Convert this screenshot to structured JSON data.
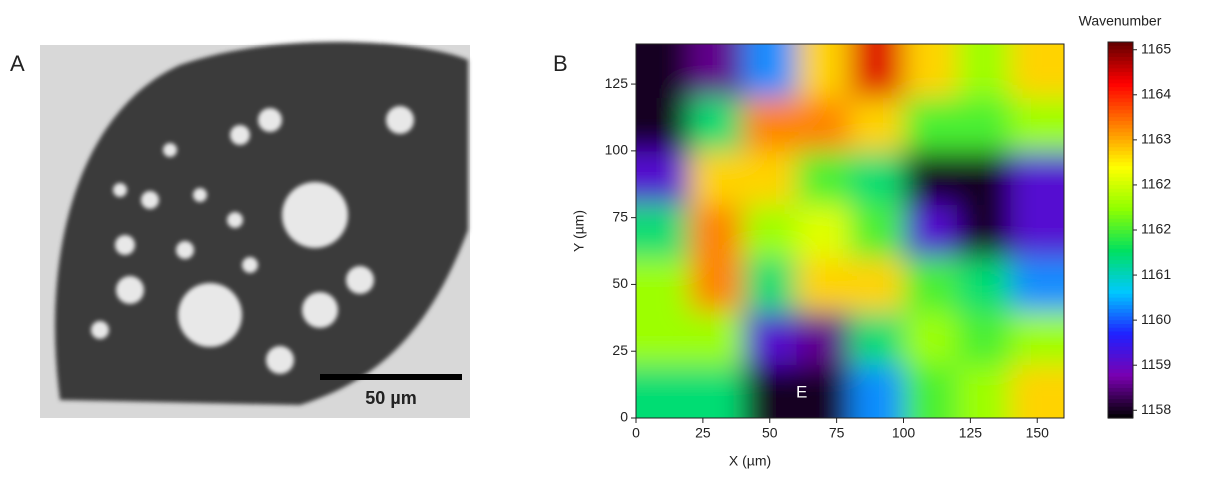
{
  "chart_data": {
    "type": "heatmap",
    "panel_a": {
      "label": "A",
      "scale_bar": "50 µm"
    },
    "label": "B",
    "xlabel": "X (µm)",
    "ylabel": "Y (µm)",
    "annotation": "E",
    "xlim": [
      0,
      160
    ],
    "ylim": [
      0,
      140
    ],
    "xticks": [
      0,
      25,
      50,
      75,
      100,
      125,
      150
    ],
    "yticks": [
      0,
      25,
      50,
      75,
      100,
      125
    ],
    "x": [
      10,
      30,
      50,
      70,
      90,
      110,
      130,
      150
    ],
    "y": [
      10,
      30,
      50,
      70,
      90,
      110,
      130
    ],
    "z": [
      [
        1161,
        1161,
        1158,
        1158,
        1160,
        1161.5,
        1162,
        1163
      ],
      [
        1162,
        1162,
        1159,
        1158.5,
        1161,
        1162,
        1161.5,
        1162
      ],
      [
        1162,
        1163.5,
        1161,
        1163,
        1163,
        1161.5,
        1161,
        1160
      ],
      [
        1161,
        1163.5,
        1162,
        1162.5,
        1161.5,
        1159,
        1158,
        1159
      ],
      [
        1159,
        1163,
        1163,
        1161.5,
        1161,
        1158,
        1158,
        1159
      ],
      [
        1158,
        1161,
        1163.5,
        1163.5,
        1163,
        1161.5,
        1161.5,
        1162
      ],
      [
        1158,
        1158.5,
        1160,
        1163,
        1164.5,
        1163,
        1162,
        1163
      ]
    ],
    "colorbar_title": "Wavenumber",
    "clim": [
      1157.85,
      1165.15
    ],
    "cticks": [
      {
        "value": 1158,
        "label": "1158"
      },
      {
        "value": 1158.875,
        "label": "1159"
      },
      {
        "value": 1159.75,
        "label": "1160"
      },
      {
        "value": 1160.625,
        "label": "1161"
      },
      {
        "value": 1161.5,
        "label": "1162"
      },
      {
        "value": 1162.375,
        "label": "1162"
      },
      {
        "value": 1163.25,
        "label": "1163"
      },
      {
        "value": 1164.125,
        "label": "1164"
      },
      {
        "value": 1165,
        "label": "1165"
      }
    ],
    "colormap": [
      "#000000",
      "#7a00b0",
      "#2020ff",
      "#00c8ff",
      "#00e060",
      "#90ff00",
      "#ffff00",
      "#ff8000",
      "#ff0000",
      "#600000"
    ]
  }
}
